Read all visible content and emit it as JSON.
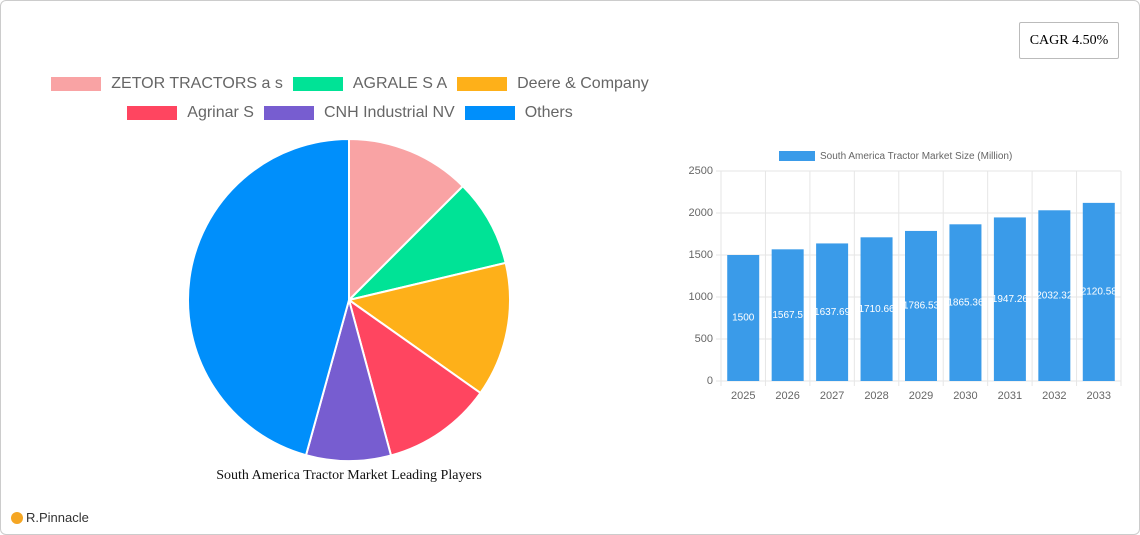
{
  "cagr": "CAGR 4.50%",
  "brand": "R.Pinnacle",
  "chart_data": [
    {
      "type": "pie",
      "title": "South America Tractor Market Leading Players",
      "categories": [
        "ZETOR TRACTORS a s",
        "AGRALE S A",
        "Deere & Company",
        "Agrinar S",
        "CNH Industrial NV",
        "Others"
      ],
      "values": [
        12.5,
        8.8,
        13.5,
        11,
        8.5,
        45.7
      ],
      "colors": [
        "#f9a3a4",
        "#00e396",
        "#feb019",
        "#ff4560",
        "#775dd0",
        "#008ffb"
      ]
    },
    {
      "type": "bar",
      "categories": [
        "2025",
        "2026",
        "2027",
        "2028",
        "2029",
        "2030",
        "2031",
        "2032",
        "2033"
      ],
      "series": [
        {
          "name": "South America Tractor Market Size (Million)",
          "color": "#3a9be9",
          "values": [
            1500,
            1567.5,
            1637.69,
            1710.66,
            1786.53,
            1865.36,
            1947.26,
            2032.32,
            2120.58
          ]
        }
      ],
      "ylim": [
        0,
        2500
      ],
      "yticks": [
        0,
        500,
        1000,
        1500,
        2000,
        2500
      ],
      "grid": true
    }
  ]
}
